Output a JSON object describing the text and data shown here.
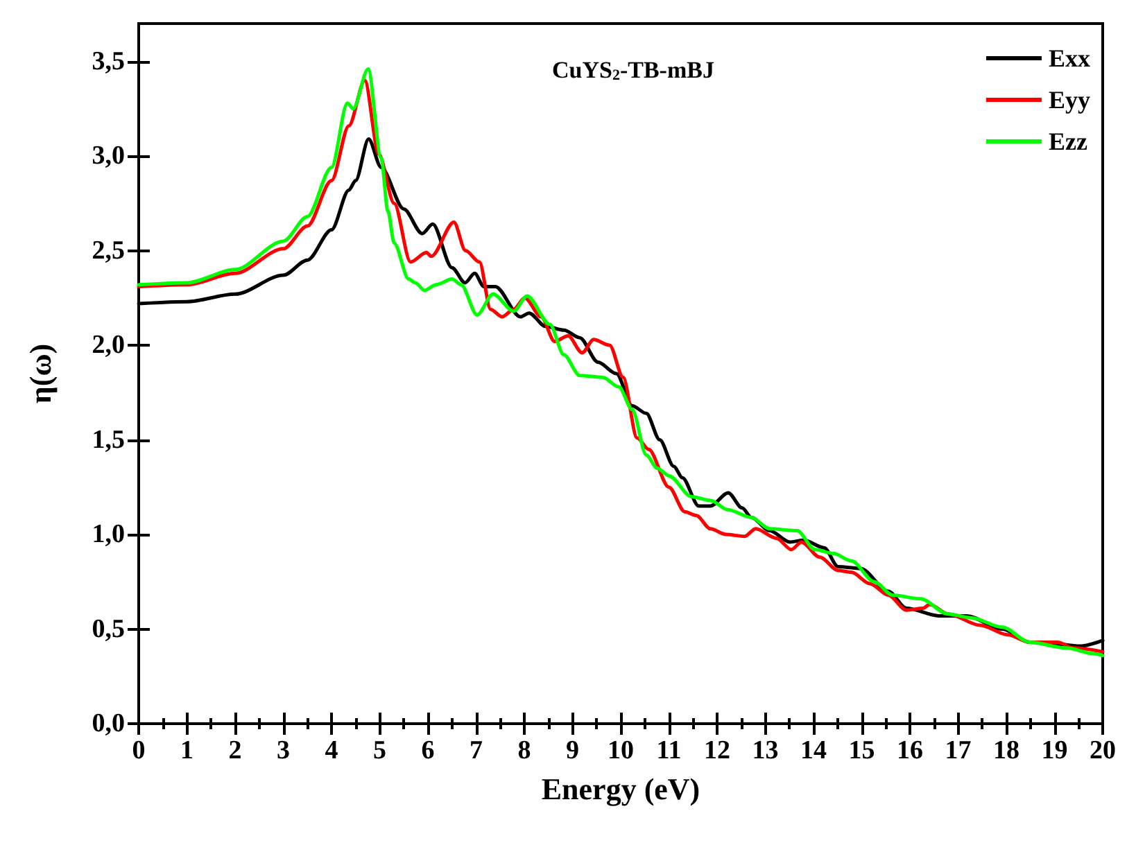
{
  "chart_data": {
    "type": "line",
    "title": "CuYS$_{2}$-TB-mBJ",
    "xlabel": "Energy (eV)",
    "ylabel": "η(ω)",
    "xlim": [
      0,
      20
    ],
    "xticks": [
      0,
      1,
      2,
      3,
      4,
      5,
      6,
      7,
      8,
      9,
      10,
      11,
      12,
      13,
      14,
      15,
      16,
      17,
      18,
      19,
      20
    ],
    "ylim": [
      0,
      3.7
    ],
    "yticks": [
      {
        "value": 0,
        "label": "0,0"
      },
      {
        "value": 0.5,
        "label": "0,5"
      },
      {
        "value": 1,
        "label": "1,0"
      },
      {
        "value": 1.5,
        "label": "1,5"
      },
      {
        "value": 2,
        "label": "2,0"
      },
      {
        "value": 2.5,
        "label": "2,5"
      },
      {
        "value": 3,
        "label": "3,0"
      },
      {
        "value": 3.5,
        "label": "3,5"
      }
    ],
    "grid": false,
    "legend": "top right",
    "marker": "none",
    "line_style": "solid",
    "series": [
      {
        "name": "Exx",
        "color": "#000000",
        "x": [
          0,
          1,
          2,
          3,
          3.5,
          4,
          4.36,
          4.5,
          4.77,
          5.03,
          5.5,
          5.88,
          6.1,
          6.5,
          6.77,
          6.97,
          7.16,
          7.4,
          7.92,
          8.1,
          8.44,
          8.82,
          9.15,
          9.53,
          9.91,
          10.24,
          10.53,
          10.81,
          11.1,
          11.28,
          11.62,
          11.86,
          12.23,
          12.52,
          12.71,
          13.09,
          13.51,
          13.8,
          14.22,
          14.51,
          14.98,
          15.55,
          15.93,
          16.6,
          17.17,
          17.92,
          18.49,
          19.06,
          19.53,
          20
        ],
        "values": [
          2.22,
          2.23,
          2.27,
          2.37,
          2.45,
          2.61,
          2.82,
          2.87,
          3.09,
          2.94,
          2.72,
          2.59,
          2.64,
          2.41,
          2.33,
          2.38,
          2.31,
          2.31,
          2.15,
          2.17,
          2.1,
          2.08,
          2.04,
          1.91,
          1.85,
          1.68,
          1.64,
          1.5,
          1.36,
          1.3,
          1.15,
          1.15,
          1.22,
          1.14,
          1.09,
          1.02,
          0.96,
          0.97,
          0.93,
          0.83,
          0.82,
          0.7,
          0.61,
          0.57,
          0.57,
          0.5,
          0.43,
          0.42,
          0.41,
          0.44
        ]
      },
      {
        "name": "Eyy",
        "color": "#ff0000",
        "x": [
          0,
          1,
          2,
          3,
          3.5,
          4,
          4.36,
          4.69,
          4.98,
          5.3,
          5.64,
          5.97,
          6.07,
          6.54,
          6.78,
          7.07,
          7.3,
          7.54,
          7.78,
          8.01,
          8.35,
          8.63,
          8.91,
          9.2,
          9.44,
          9.77,
          10.05,
          10.34,
          10.58,
          11.0,
          11.33,
          11.57,
          11.86,
          12.19,
          12.57,
          12.8,
          13.23,
          13.54,
          13.75,
          14.13,
          14.51,
          14.79,
          15.17,
          15.55,
          15.93,
          16.27,
          16.41,
          16.79,
          17.46,
          18.03,
          18.49,
          19.06,
          19.4,
          20
        ],
        "values": [
          2.31,
          2.32,
          2.38,
          2.51,
          2.63,
          2.87,
          3.16,
          3.4,
          3.01,
          2.75,
          2.44,
          2.49,
          2.47,
          2.65,
          2.5,
          2.44,
          2.19,
          2.15,
          2.19,
          2.25,
          2.15,
          2.02,
          2.05,
          1.96,
          2.03,
          2.0,
          1.83,
          1.51,
          1.45,
          1.25,
          1.12,
          1.1,
          1.03,
          1.0,
          0.99,
          1.03,
          0.98,
          0.92,
          0.96,
          0.88,
          0.81,
          0.8,
          0.74,
          0.68,
          0.6,
          0.61,
          0.63,
          0.58,
          0.52,
          0.47,
          0.43,
          0.43,
          0.4,
          0.38
        ]
      },
      {
        "name": "Ezz",
        "color": "#00ff00",
        "x": [
          0,
          1,
          2,
          3,
          3.5,
          4,
          4.33,
          4.45,
          4.76,
          5.03,
          5.17,
          5.3,
          5.6,
          5.74,
          5.93,
          6.17,
          6.5,
          6.69,
          7.02,
          7.35,
          7.78,
          8.06,
          8.53,
          8.82,
          9.15,
          9.63,
          9.96,
          10.24,
          10.53,
          10.76,
          11.0,
          11.47,
          11.86,
          12.23,
          12.71,
          13.09,
          13.66,
          14.03,
          14.41,
          14.79,
          15.26,
          15.64,
          16.22,
          16.79,
          17.27,
          17.92,
          18.49,
          19.25,
          19.81,
          20
        ],
        "values": [
          2.32,
          2.33,
          2.4,
          2.55,
          2.68,
          2.94,
          3.28,
          3.25,
          3.46,
          2.99,
          2.71,
          2.54,
          2.35,
          2.33,
          2.29,
          2.32,
          2.35,
          2.32,
          2.16,
          2.27,
          2.18,
          2.26,
          2.11,
          1.95,
          1.84,
          1.83,
          1.78,
          1.66,
          1.42,
          1.35,
          1.31,
          1.2,
          1.18,
          1.13,
          1.09,
          1.03,
          1.02,
          0.92,
          0.9,
          0.86,
          0.75,
          0.68,
          0.66,
          0.58,
          0.56,
          0.51,
          0.43,
          0.4,
          0.37,
          0.36
        ]
      }
    ]
  }
}
